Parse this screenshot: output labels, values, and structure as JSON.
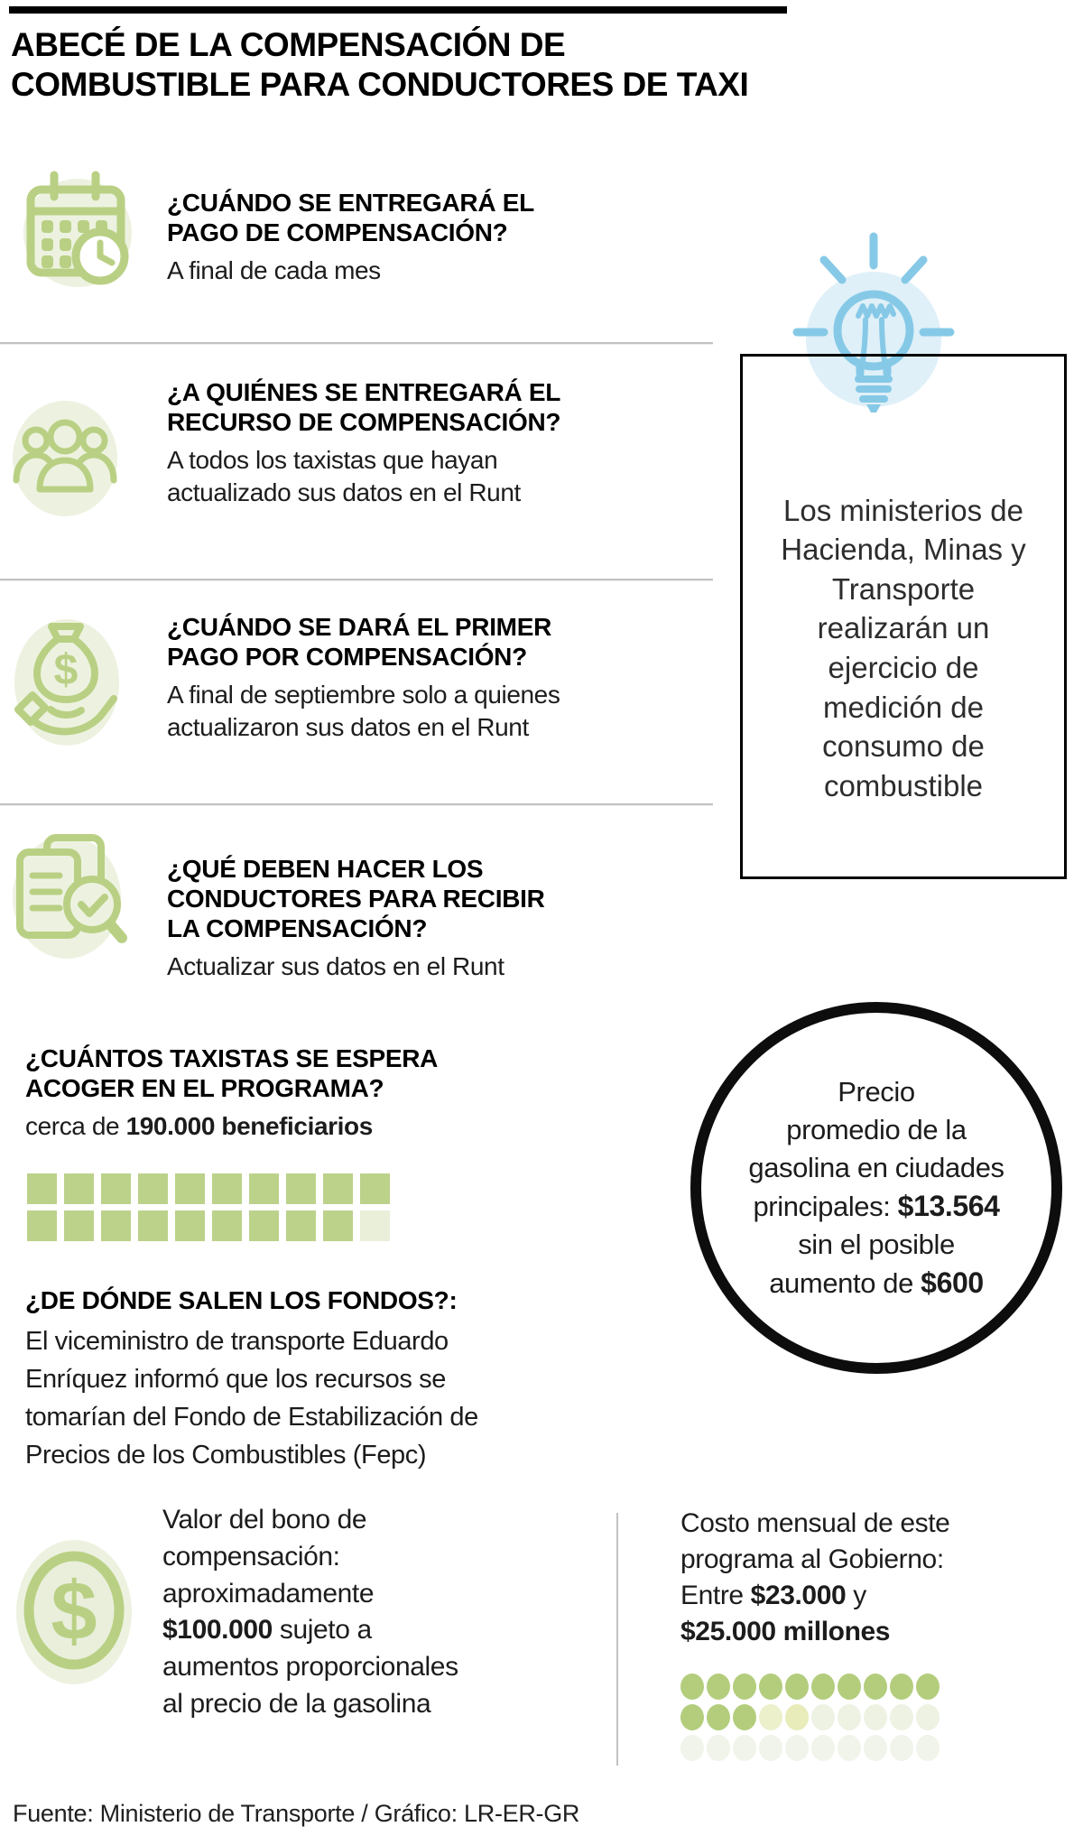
{
  "header": {
    "title": "ABECÉ DE LA COMPENSACIÓN DE\nCOMBUSTIBLE PARA CONDUCTORES DE TAXI"
  },
  "colors": {
    "accent_green": "#b9d084",
    "pale_green_bg": "#edf2e0",
    "accent_blue": "#86c9e7",
    "pale_blue_bg": "#dff0f8",
    "black": "#000000",
    "divider_gray": "#c2c2c2"
  },
  "icons": {
    "section_icons": [
      "calendar-clock-icon",
      "people-icon",
      "money-bag-hand-icon",
      "documents-magnifier-icon"
    ],
    "note_icon": "lightbulb-icon",
    "bond_icon": "coin-dollar-icon"
  },
  "sections": [
    {
      "question": "¿CUÁNDO SE ENTREGARÁ EL\nPAGO DE COMPENSACIÓN?",
      "answer": "A final de cada mes"
    },
    {
      "question": "¿A QUIÉNES SE ENTREGARÁ EL\nRECURSO DE COMPENSACIÓN?",
      "answer": "A todos los taxistas que hayan\nactualizado sus datos en el Runt"
    },
    {
      "question": "¿CUÁNDO SE DARÁ EL PRIMER\nPAGO POR COMPENSACIÓN?",
      "answer": "A final de septiembre solo a quienes\nactualizaron sus datos en el Runt"
    },
    {
      "question": "¿QUÉ DEBEN HACER LOS\nCONDUCTORES PARA RECIBIR\nLA COMPENSACIÓN?",
      "answer": "Actualizar sus datos en el Runt"
    }
  ],
  "ministries_note": {
    "text": "Los ministerios de\nHacienda, Minas y\nTransporte\nrealizarán un\nejercicio de\nmedición de\nconsumo de\ncombustible"
  },
  "beneficiaries": {
    "question": "¿CUÁNTOS TAXISTAS SE ESPERA\nACOGER EN EL PROGRAMA?",
    "answer_prefix": "cerca de ",
    "answer_bold": "190.000 beneficiarios"
  },
  "beneficiaries_grid": {
    "type": "pictogram-squares",
    "palette": {
      "g": "#bcd28b",
      "p": "#e9efd8"
    },
    "cells": [
      [
        "g",
        "g",
        "g",
        "g",
        "g",
        "g",
        "g",
        "g",
        "g",
        "g"
      ],
      [
        "g",
        "g",
        "g",
        "g",
        "g",
        "g",
        "g",
        "g",
        "g",
        "p"
      ]
    ]
  },
  "funds": {
    "question": "¿DE DÓNDE SALEN LOS FONDOS?:",
    "answer": "El viceministro de transporte Eduardo\nEnríquez informó que los recursos se\ntomarían del Fondo de Estabilización de\nPrecios de los Combustibles (Fepc)"
  },
  "price_circle": {
    "line1": "Precio",
    "line2": "promedio de la",
    "line3": "gasolina en ciudades",
    "line4_pre": "principales: ",
    "line4_bold": "$13.564",
    "line5": "sin el posible",
    "line6_pre": "aumento de ",
    "line6_bold": "$600"
  },
  "bond": {
    "line1": "Valor del bono de",
    "line2": "compensación:",
    "line3": "aproximadamente",
    "line4_bold": "$100.000",
    "line4_post": " sujeto a",
    "line5": "aumentos proporcionales",
    "line6": "al precio de la gasolina"
  },
  "cost": {
    "line1": "Costo mensual de este",
    "line2": "programa al Gobierno:",
    "line3_pre": "Entre ",
    "line3_bold": "$23.000",
    "line3_post": " y",
    "line4_bold": "$25.000 millones"
  },
  "cost_dots_grid": {
    "type": "pictogram-dots",
    "palette": {
      "g": "#b3cd7d",
      "y": "#ecf0cb",
      "z": "#e7ecba",
      "p": "#edf2e3",
      "q": "#f0f4ea"
    },
    "cells": [
      [
        "g",
        "g",
        "g",
        "g",
        "g",
        "g",
        "g",
        "g",
        "g",
        "g"
      ],
      [
        "g",
        "g",
        "g",
        "y",
        "z",
        "p",
        "p",
        "p",
        "p",
        "p"
      ],
      [
        "q",
        "q",
        "q",
        "q",
        "q",
        "q",
        "q",
        "q",
        "q",
        "q"
      ]
    ]
  },
  "footer": {
    "source": "Fuente: Ministerio de Transporte / Gráfico: LR-ER-GR"
  }
}
